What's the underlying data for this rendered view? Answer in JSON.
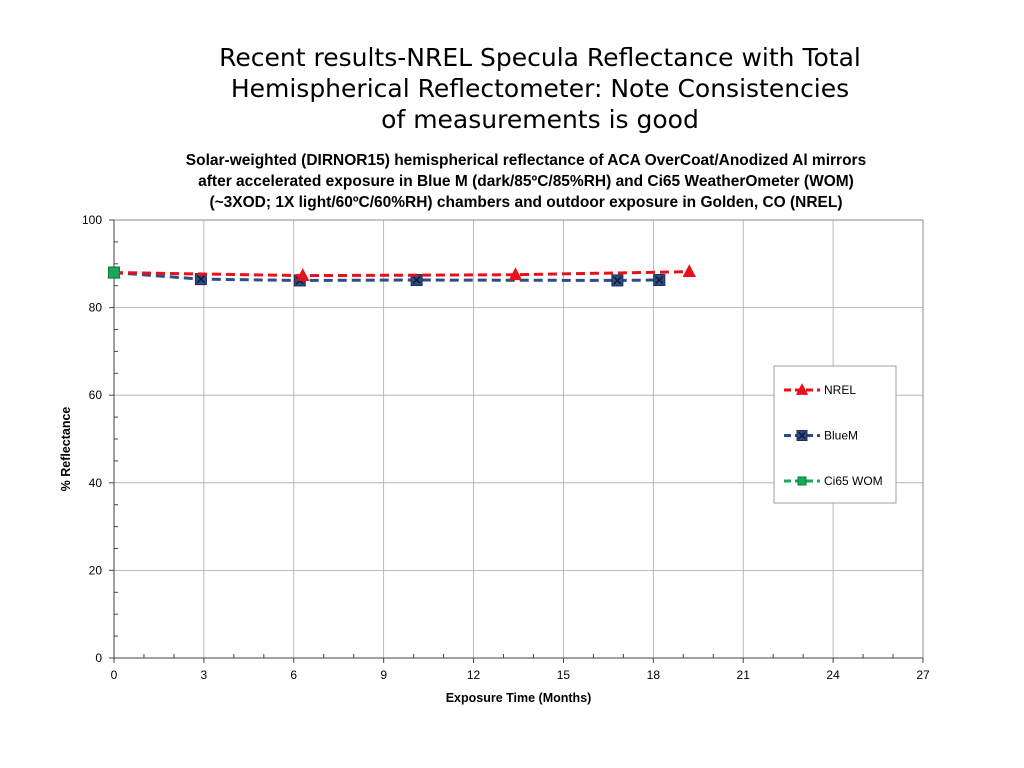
{
  "slide": {
    "title_lines": [
      "Recent results-NREL Specula Reflectance with Total",
      "Hemispherical Reflectometer: Note Consistencies",
      "of measurements is good"
    ]
  },
  "chart_data": {
    "type": "line",
    "title_lines": [
      "Solar-weighted (DIRNOR15) hemispherical reflectance of ACA OverCoat/Anodized Al mirrors",
      "after accelerated exposure in Blue M (dark/85ºC/85%RH) and Ci65 WeatherOmeter (WOM)",
      "(~3XOD; 1X light/60ºC/60%RH) chambers and outdoor exposure in Golden, CO (NREL)"
    ],
    "xlabel": "Exposure Time (Months)",
    "ylabel": "% Reflectance",
    "xlim": [
      0,
      27
    ],
    "ylim": [
      0,
      100
    ],
    "xticks": [
      0,
      3,
      6,
      9,
      12,
      15,
      18,
      21,
      24,
      27
    ],
    "yticks": [
      0,
      20,
      40,
      60,
      80,
      100
    ],
    "grid": true,
    "legend_position": "right",
    "series": [
      {
        "name": "NREL",
        "color": "#e8101a",
        "marker": "triangle",
        "x": [
          0,
          6.3,
          13.4,
          19.2
        ],
        "y": [
          88.0,
          87.3,
          87.5,
          88.2
        ]
      },
      {
        "name": "BlueM",
        "color": "#2e4d84",
        "marker": "square",
        "x": [
          0,
          2.9,
          6.2,
          10.1,
          16.8,
          18.2
        ],
        "y": [
          88.0,
          86.5,
          86.2,
          86.3,
          86.2,
          86.3
        ]
      },
      {
        "name": "Ci65 WOM",
        "color": "#18a85a",
        "marker": "square",
        "x": [
          0
        ],
        "y": [
          88.0
        ]
      }
    ]
  }
}
